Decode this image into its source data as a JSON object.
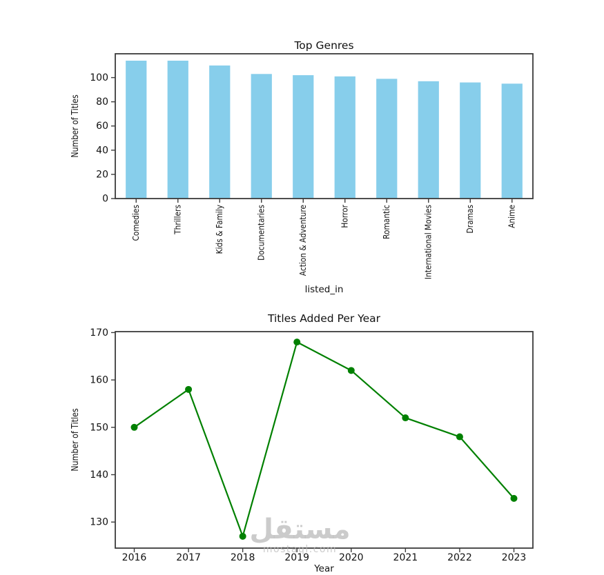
{
  "figure": {
    "background": "#ffffff",
    "watermark": {
      "arabic": "مستقل",
      "latin": "mostaql.com"
    }
  },
  "chart_data": [
    {
      "type": "bar",
      "title": "Top Genres",
      "xlabel": "listed_in",
      "ylabel": "Number of Titles",
      "categories": [
        "Comedies",
        "Thrillers",
        "Kids & Family",
        "Documentaries",
        "Action & Adventure",
        "Horror",
        "Romantic",
        "International Movies",
        "Dramas",
        "Anime"
      ],
      "values": [
        114,
        114,
        110,
        103,
        102,
        101,
        99,
        97,
        96,
        95
      ],
      "yticks": [
        0,
        20,
        40,
        60,
        80,
        100
      ],
      "ylim": [
        0,
        119.7
      ],
      "bar_color": "#87CEEB",
      "axis_color": "#3a3a3a",
      "grid": false,
      "legend": "none"
    },
    {
      "type": "line",
      "title": "Titles Added Per Year",
      "xlabel": "Year",
      "ylabel": "Number of Titles",
      "x": [
        2016,
        2017,
        2018,
        2019,
        2020,
        2021,
        2022,
        2023
      ],
      "values": [
        150,
        158,
        127,
        168,
        162,
        152,
        148,
        135
      ],
      "yticks": [
        130,
        140,
        150,
        160,
        170
      ],
      "ylim": [
        124.5,
        170.2
      ],
      "line_color": "#008000",
      "marker": "circle",
      "axis_color": "#3a3a3a",
      "grid": false,
      "legend": "none"
    }
  ]
}
